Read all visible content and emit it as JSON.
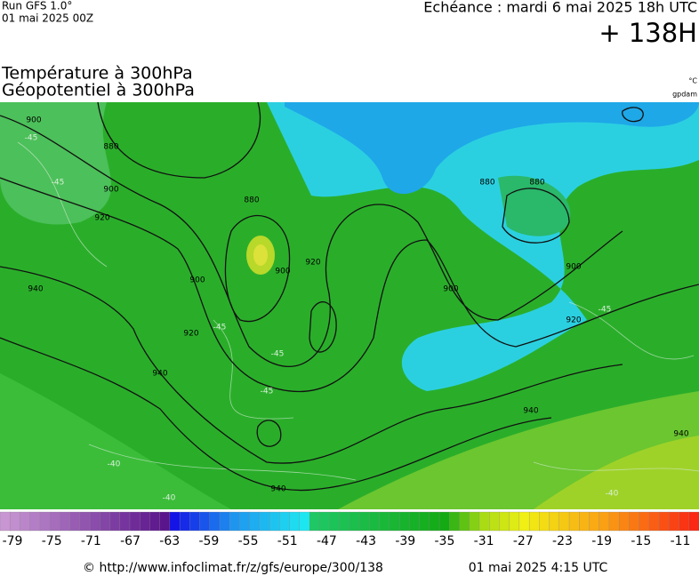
{
  "header": {
    "run": "Run GFS 1.0°",
    "run_date": "01 mai 2025 00Z",
    "echeance": "Echéance : mardi 6 mai 2025 18h UTC",
    "offset": "+ 138H"
  },
  "titles": {
    "temperature": "Température à 300hPa",
    "geopotential": "Géopotentiel à 300hPa",
    "unit_temp": "°C",
    "unit_geo": "gpdam"
  },
  "map": {
    "contour_labels": [
      "900",
      "880",
      "900",
      "920",
      "880",
      "900",
      "900",
      "920",
      "920",
      "940",
      "940",
      "940",
      "880",
      "880",
      "900",
      "900",
      "920",
      "940",
      "940",
      "-45",
      "-45",
      "-45",
      "-45",
      "-45",
      "-45",
      "-40",
      "-40",
      "-40"
    ]
  },
  "colorbar": {
    "labels": [
      -79,
      -75,
      -71,
      -67,
      -63,
      -59,
      -55,
      -51,
      -47,
      -43,
      -39,
      -35,
      -31,
      -27,
      -23,
      -19,
      -15,
      -11
    ]
  },
  "footer": {
    "url": "© http://www.infoclimat.fr/z/gfs/europe/300/138",
    "generated": "01 mai 2025  4:15 UTC"
  }
}
